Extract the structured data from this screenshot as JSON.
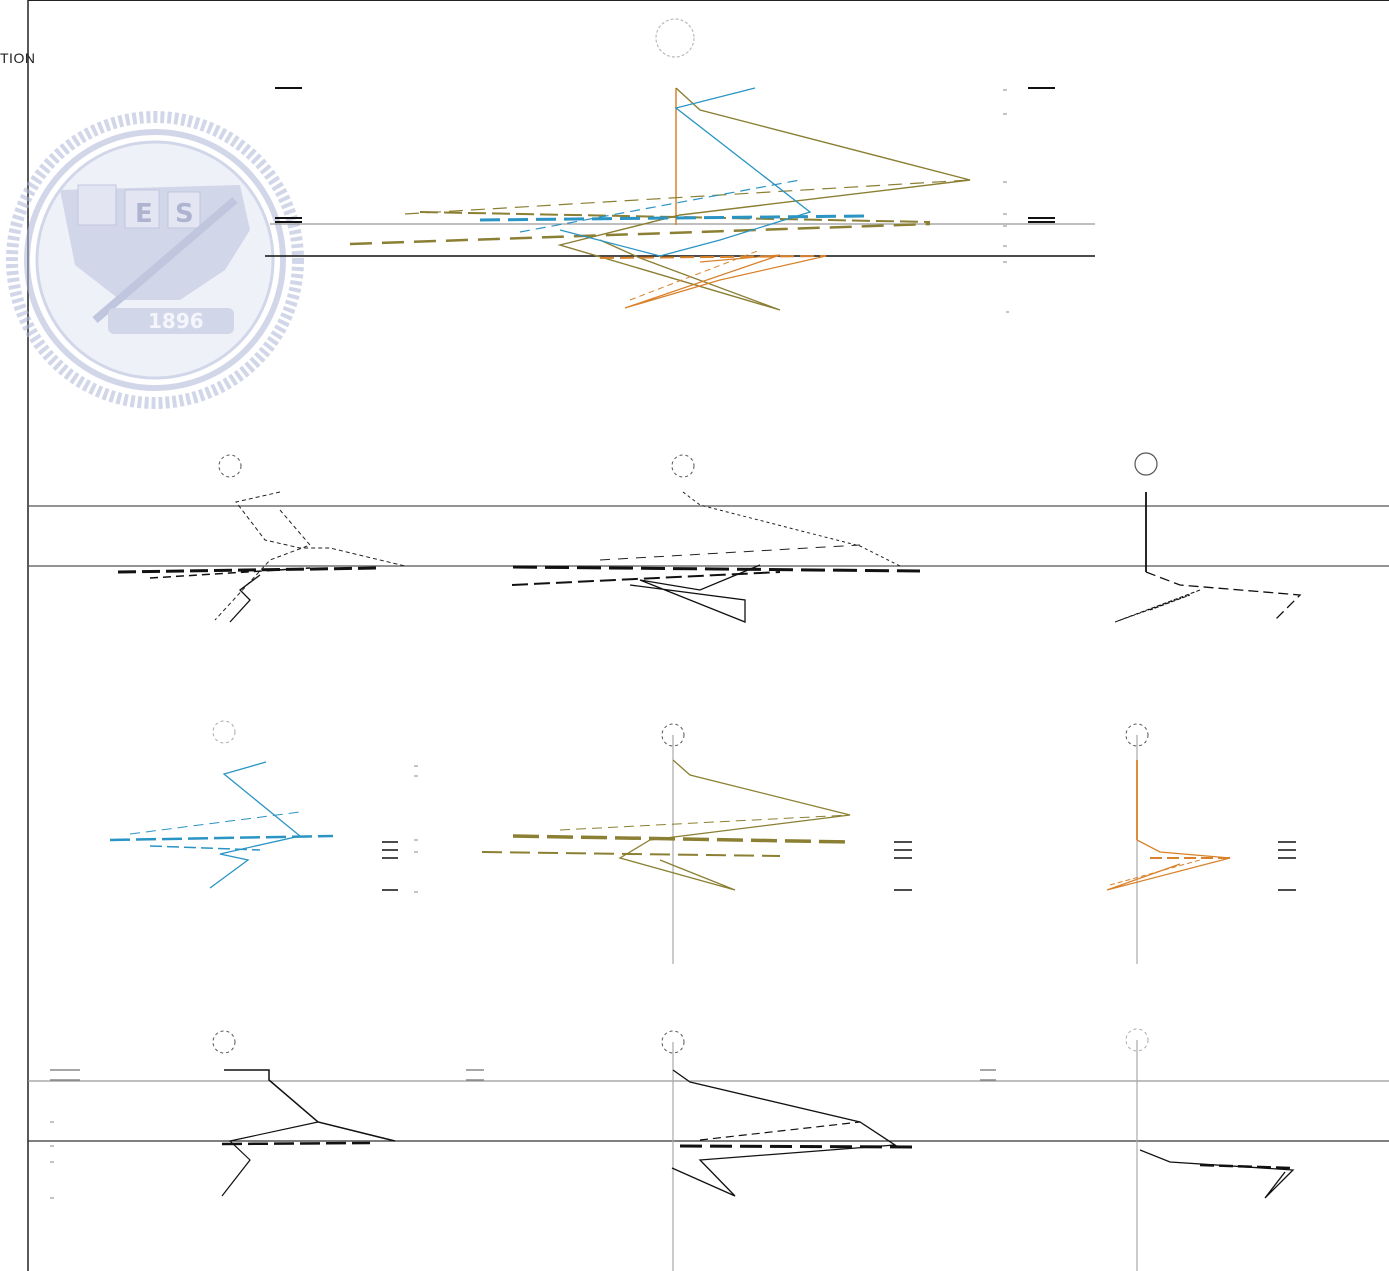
{
  "document": {
    "header_fragment": "TION"
  },
  "watermark": {
    "letters_left": "E",
    "letters_right": "S",
    "year": "1896",
    "color": "#aeb6d8"
  },
  "colors": {
    "blue": "#2a94c4",
    "olive": "#8b7f33",
    "orange": "#d9822b",
    "black": "#111111",
    "gray_line": "#9a9a9a"
  },
  "panels": [
    {
      "id": "main-overlay",
      "series": [
        "blue",
        "olive",
        "orange",
        "black"
      ]
    },
    {
      "id": "row2-left",
      "series": [
        "black"
      ]
    },
    {
      "id": "row2-middle",
      "series": [
        "black"
      ]
    },
    {
      "id": "row2-right",
      "series": [
        "black"
      ]
    },
    {
      "id": "row3-left",
      "series": [
        "blue"
      ]
    },
    {
      "id": "row3-middle",
      "series": [
        "olive"
      ]
    },
    {
      "id": "row3-right",
      "series": [
        "orange"
      ]
    },
    {
      "id": "row4-left",
      "series": [
        "black"
      ]
    },
    {
      "id": "row4-middle",
      "series": [
        "black"
      ]
    },
    {
      "id": "row4-right",
      "series": [
        "black"
      ]
    }
  ]
}
